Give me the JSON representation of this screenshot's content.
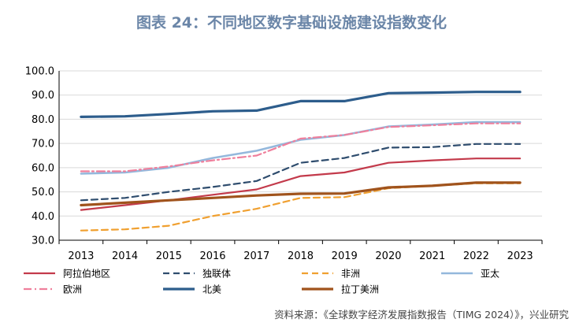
{
  "title": "图表 24：不同地区数字基础设施建设指数变化",
  "source": "资料来源：《全球数字经济发展指数报告（TIMG 2024）》，兴业研究",
  "chart_data": {
    "type": "line",
    "x": [
      "2013",
      "2014",
      "2015",
      "2016",
      "2017",
      "2018",
      "2019",
      "2020",
      "2021",
      "2022",
      "2023"
    ],
    "ylim": [
      30,
      100
    ],
    "yticks": [
      "30.0",
      "40.0",
      "50.0",
      "60.0",
      "70.0",
      "80.0",
      "90.0",
      "100.0"
    ],
    "grid": true,
    "legend_position": "bottom",
    "series": [
      {
        "name": "阿拉伯地区",
        "color": "#c33a4b",
        "dash": "solid",
        "width": 2.2,
        "values": [
          42.5,
          44.5,
          46.5,
          48.8,
          51.0,
          56.5,
          58.0,
          62.0,
          63.0,
          63.8,
          63.8
        ]
      },
      {
        "name": "独联体",
        "color": "#2f4d6e",
        "dash": "dash",
        "width": 2.2,
        "values": [
          46.5,
          47.5,
          50.0,
          52.0,
          54.5,
          62.0,
          64.0,
          68.3,
          68.5,
          69.8,
          69.8
        ]
      },
      {
        "name": "非洲",
        "color": "#f0a030",
        "dash": "dash",
        "width": 2.2,
        "values": [
          34.0,
          34.5,
          36.0,
          40.0,
          43.0,
          47.5,
          47.8,
          51.5,
          52.5,
          53.5,
          53.5
        ]
      },
      {
        "name": "亚太",
        "color": "#94b8dc",
        "dash": "solid",
        "width": 2.6,
        "values": [
          57.5,
          58.0,
          60.0,
          64.0,
          67.0,
          71.5,
          73.5,
          77.0,
          77.8,
          78.8,
          78.8
        ]
      },
      {
        "name": "欧洲",
        "color": "#ef7f9c",
        "dash": "dashdot",
        "width": 2.2,
        "values": [
          58.5,
          58.5,
          60.5,
          63.0,
          65.0,
          72.0,
          73.5,
          76.8,
          77.5,
          78.3,
          78.3
        ]
      },
      {
        "name": "北美",
        "color": "#2d5d8c",
        "dash": "solid",
        "width": 3.2,
        "values": [
          81.0,
          81.2,
          82.2,
          83.3,
          83.6,
          87.5,
          87.5,
          90.8,
          91.0,
          91.3,
          91.3
        ]
      },
      {
        "name": "拉丁美洲",
        "color": "#a0531c",
        "dash": "solid",
        "width": 3.2,
        "values": [
          44.5,
          45.5,
          46.5,
          47.5,
          48.5,
          49.2,
          49.3,
          51.8,
          52.5,
          53.8,
          53.8
        ]
      }
    ]
  }
}
